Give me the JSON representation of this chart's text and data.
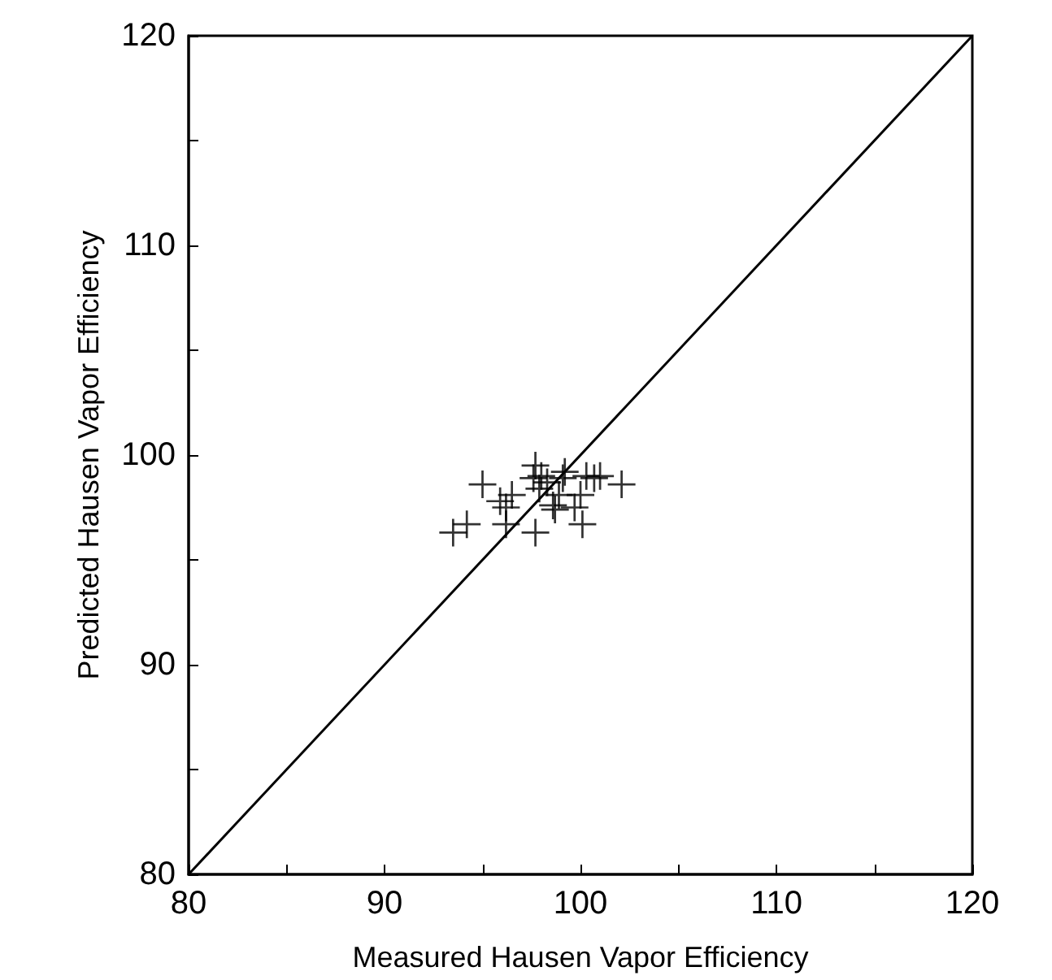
{
  "chart_data": {
    "type": "scatter",
    "xlabel": "Measured Hausen Vapor Efficiency",
    "ylabel": "Predicted Hausen Vapor Efficiency",
    "xlim": [
      80,
      120
    ],
    "ylim": [
      80,
      120
    ],
    "xticks": [
      80,
      {
        "value": 85,
        "label": null
      },
      90,
      {
        "value": 95,
        "label": null
      },
      100,
      {
        "value": 105,
        "label": null
      },
      110,
      {
        "value": 115,
        "label": null
      },
      120
    ],
    "yticks": [
      80,
      {
        "value": 85,
        "label": null
      },
      90,
      {
        "value": 95,
        "label": null
      },
      100,
      {
        "value": 105,
        "label": null
      },
      110,
      {
        "value": 115,
        "label": null
      },
      120
    ],
    "grid": false,
    "marker": "cross",
    "series": [
      {
        "color": "#000000",
        "x": [
          93.5,
          94.2,
          95.0,
          95.9,
          96.2,
          96.5,
          96.2,
          97.7,
          97.7,
          98.0,
          97.9,
          98.3,
          98.6,
          98.9,
          99.2,
          99.1,
          99.7,
          100.0,
          100.3,
          100.1,
          101.0,
          102.1,
          100.7,
          97.6,
          98.7
        ],
        "values": [
          96.3,
          96.7,
          98.6,
          97.8,
          97.5,
          98.1,
          96.7,
          96.3,
          99.5,
          99.0,
          98.4,
          98.7,
          97.6,
          98.1,
          99.2,
          98.9,
          97.5,
          98.1,
          99.0,
          96.7,
          99.0,
          98.6,
          98.9,
          98.9,
          97.4
        ]
      },
      {
        "type": "line",
        "color": "#000000",
        "line_style": "solid",
        "marker": "none",
        "x": [
          80,
          120
        ],
        "values": [
          80,
          120
        ]
      }
    ]
  }
}
